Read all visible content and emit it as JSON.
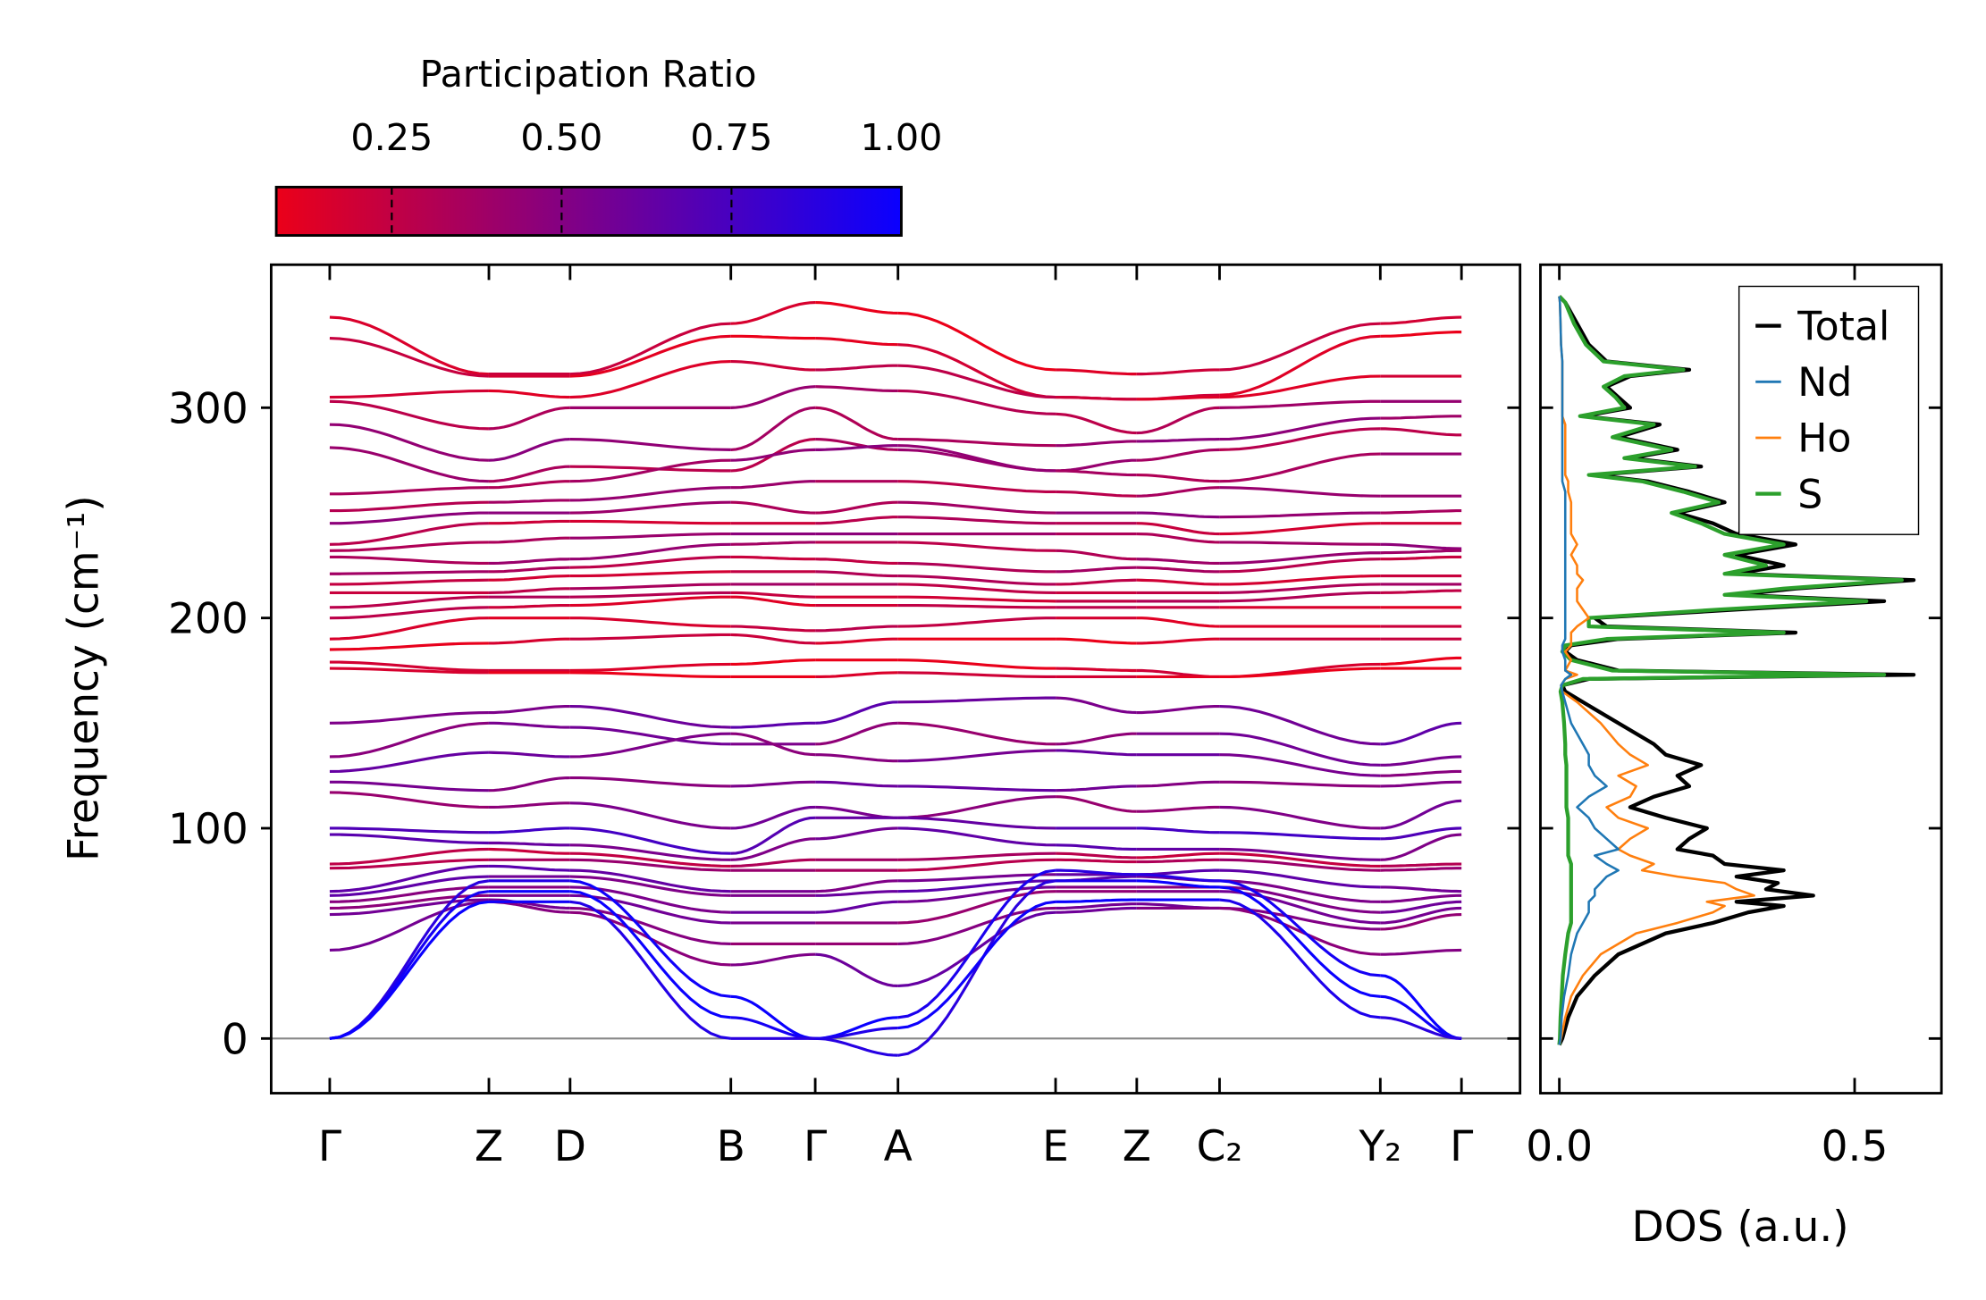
{
  "chart_data": [
    {
      "type": "line",
      "name": "phonon-band-structure",
      "ylabel": "Frequency (cm⁻¹)",
      "xlabel": "",
      "ylim": [
        -26,
        368
      ],
      "yticks": [
        "0",
        "100",
        "200",
        "300"
      ],
      "ytick_values": [
        0,
        100,
        200,
        300
      ],
      "kpoints": [
        "Γ",
        "Z",
        "D",
        "B",
        "Γ",
        "A",
        "E",
        "Z",
        "C₂",
        "Y₂",
        "Γ"
      ],
      "kpoint_positions": [
        0,
        1,
        1.51,
        2.52,
        3.05,
        3.57,
        4.56,
        5.07,
        5.59,
        6.6,
        7.11
      ],
      "colorbar": {
        "title": "Participation Ratio",
        "range": [
          0.08,
          1.0
        ],
        "ticks": [
          "0.25",
          "0.50",
          "0.75",
          "1.00"
        ],
        "tick_values": [
          0.25,
          0.5,
          0.75,
          1.0
        ],
        "low_color": "#eb0019",
        "high_color": "#0a00ff"
      },
      "bands": [
        {
          "f": [
            343,
            316,
            316,
            340,
            350,
            345,
            318,
            316,
            318,
            340,
            343
          ],
          "pr": 0.15
        },
        {
          "f": [
            333,
            315,
            315,
            334,
            333,
            330,
            305,
            304,
            306,
            334,
            336
          ],
          "pr": 0.15
        },
        {
          "f": [
            305,
            308,
            305,
            322,
            318,
            320,
            305,
            304,
            305,
            315,
            315
          ],
          "pr": 0.2
        },
        {
          "f": [
            303,
            290,
            300,
            300,
            310,
            308,
            297,
            288,
            300,
            303,
            303
          ],
          "pr": 0.35
        },
        {
          "f": [
            292,
            275,
            285,
            280,
            300,
            285,
            282,
            284,
            285,
            295,
            296
          ],
          "pr": 0.4
        },
        {
          "f": [
            281,
            265,
            272,
            270,
            285,
            280,
            270,
            275,
            280,
            290,
            287
          ],
          "pr": 0.35
        },
        {
          "f": [
            259,
            262,
            265,
            275,
            280,
            282,
            270,
            268,
            265,
            278,
            278
          ],
          "pr": 0.4
        },
        {
          "f": [
            251,
            255,
            256,
            262,
            265,
            265,
            260,
            258,
            262,
            258,
            258
          ],
          "pr": 0.35
        },
        {
          "f": [
            245,
            250,
            250,
            255,
            250,
            255,
            250,
            250,
            248,
            250,
            251
          ],
          "pr": 0.4
        },
        {
          "f": [
            235,
            245,
            246,
            245,
            245,
            248,
            245,
            245,
            240,
            245,
            245
          ],
          "pr": 0.25
        },
        {
          "f": [
            232,
            236,
            238,
            240,
            240,
            240,
            240,
            240,
            236,
            235,
            233
          ],
          "pr": 0.4
        },
        {
          "f": [
            229,
            226,
            228,
            235,
            236,
            236,
            232,
            228,
            226,
            231,
            232
          ],
          "pr": 0.35
        },
        {
          "f": [
            221,
            222,
            224,
            229,
            228,
            226,
            222,
            224,
            222,
            228,
            229
          ],
          "pr": 0.3
        },
        {
          "f": [
            216,
            218,
            220,
            222,
            222,
            220,
            216,
            218,
            216,
            220,
            220
          ],
          "pr": 0.25
        },
        {
          "f": [
            212,
            212,
            214,
            216,
            216,
            216,
            212,
            212,
            212,
            216,
            216
          ],
          "pr": 0.3
        },
        {
          "f": [
            205,
            210,
            210,
            212,
            210,
            210,
            208,
            208,
            208,
            212,
            213
          ],
          "pr": 0.25
        },
        {
          "f": [
            200,
            205,
            206,
            210,
            206,
            206,
            205,
            205,
            205,
            205,
            205
          ],
          "pr": 0.2
        },
        {
          "f": [
            190,
            200,
            200,
            196,
            194,
            196,
            200,
            200,
            196,
            196,
            196
          ],
          "pr": 0.2
        },
        {
          "f": [
            185,
            188,
            190,
            192,
            188,
            190,
            190,
            188,
            190,
            190,
            190
          ],
          "pr": 0.15
        },
        {
          "f": [
            179,
            175,
            175,
            178,
            180,
            180,
            176,
            175,
            172,
            178,
            181
          ],
          "pr": 0.12
        },
        {
          "f": [
            176,
            174,
            174,
            172,
            172,
            174,
            172,
            172,
            172,
            176,
            176
          ],
          "pr": 0.12
        },
        {
          "f": [
            150,
            155,
            158,
            148,
            150,
            160,
            162,
            155,
            158,
            140,
            150
          ],
          "pr": 0.6
        },
        {
          "f": [
            134,
            150,
            148,
            140,
            140,
            150,
            140,
            145,
            145,
            130,
            134
          ],
          "pr": 0.5
        },
        {
          "f": [
            127,
            136,
            134,
            145,
            135,
            132,
            137,
            135,
            135,
            125,
            127
          ],
          "pr": 0.55
        },
        {
          "f": [
            122,
            118,
            124,
            120,
            122,
            120,
            118,
            120,
            122,
            120,
            122
          ],
          "pr": 0.55
        },
        {
          "f": [
            117,
            110,
            112,
            100,
            110,
            105,
            115,
            108,
            110,
            100,
            113
          ],
          "pr": 0.5
        },
        {
          "f": [
            100,
            98,
            100,
            88,
            105,
            105,
            100,
            100,
            98,
            95,
            100
          ],
          "pr": 0.7
        },
        {
          "f": [
            97,
            93,
            92,
            85,
            95,
            100,
            92,
            90,
            90,
            85,
            97
          ],
          "pr": 0.6
        },
        {
          "f": [
            83,
            90,
            88,
            82,
            85,
            85,
            88,
            86,
            88,
            82,
            83
          ],
          "pr": 0.3
        },
        {
          "f": [
            81,
            85,
            85,
            80,
            80,
            80,
            85,
            84,
            85,
            80,
            81
          ],
          "pr": 0.35
        },
        {
          "f": [
            70,
            82,
            80,
            70,
            70,
            75,
            78,
            78,
            80,
            72,
            70
          ],
          "pr": 0.6
        },
        {
          "f": [
            68,
            77,
            77,
            68,
            68,
            70,
            75,
            77,
            75,
            65,
            68
          ],
          "pr": 0.6
        },
        {
          "f": [
            65,
            72,
            72,
            60,
            60,
            65,
            72,
            72,
            72,
            60,
            65
          ],
          "pr": 0.55
        },
        {
          "f": [
            62,
            68,
            68,
            55,
            55,
            55,
            70,
            70,
            70,
            55,
            62
          ],
          "pr": 0.5
        },
        {
          "f": [
            59,
            66,
            62,
            45,
            45,
            45,
            62,
            64,
            62,
            52,
            59
          ],
          "pr": 0.5
        },
        {
          "f": [
            42,
            65,
            60,
            35,
            40,
            25,
            60,
            62,
            62,
            40,
            42
          ],
          "pr": 0.55
        },
        {
          "f": [
            0,
            75,
            75,
            20,
            0,
            10,
            80,
            78,
            75,
            30,
            0
          ],
          "pr": 0.95
        },
        {
          "f": [
            0,
            70,
            70,
            10,
            0,
            -8,
            75,
            75,
            72,
            20,
            0
          ],
          "pr": 0.95
        },
        {
          "f": [
            0,
            65,
            65,
            0,
            0,
            5,
            65,
            66,
            66,
            10,
            0
          ],
          "pr": 0.95
        }
      ]
    },
    {
      "type": "line",
      "name": "density-of-states",
      "xlabel": "DOS (a.u.)",
      "xlim": [
        -0.032,
        0.647
      ],
      "xticks": [
        "0.0",
        "0.5"
      ],
      "xtick_values": [
        0.0,
        0.5
      ],
      "ylim": [
        -26,
        368
      ],
      "legend_position": "top-right",
      "series": [
        {
          "name": "Total",
          "color": "#000000"
        },
        {
          "name": "Nd",
          "color": "#1f77b4"
        },
        {
          "name": "Ho",
          "color": "#ff7f0e"
        },
        {
          "name": "S",
          "color": "#2ca02c"
        }
      ],
      "columns": [
        "frequency",
        "Total",
        "Nd",
        "Ho",
        "S"
      ],
      "rows": [
        [
          -3,
          0,
          0,
          0,
          0
        ],
        [
          0,
          0.005,
          0.002,
          0.003,
          0.001
        ],
        [
          10,
          0.015,
          0.004,
          0.01,
          0.002
        ],
        [
          20,
          0.03,
          0.008,
          0.02,
          0.004
        ],
        [
          30,
          0.06,
          0.015,
          0.04,
          0.006
        ],
        [
          40,
          0.1,
          0.02,
          0.07,
          0.01
        ],
        [
          50,
          0.18,
          0.03,
          0.13,
          0.015
        ],
        [
          55,
          0.26,
          0.04,
          0.2,
          0.02
        ],
        [
          60,
          0.32,
          0.05,
          0.26,
          0.02
        ],
        [
          63,
          0.38,
          0.05,
          0.28,
          0.02
        ],
        [
          65,
          0.3,
          0.05,
          0.25,
          0.02
        ],
        [
          68,
          0.43,
          0.06,
          0.33,
          0.02
        ],
        [
          71,
          0.35,
          0.06,
          0.3,
          0.02
        ],
        [
          74,
          0.37,
          0.07,
          0.28,
          0.02
        ],
        [
          77,
          0.3,
          0.08,
          0.2,
          0.02
        ],
        [
          80,
          0.38,
          0.1,
          0.14,
          0.02
        ],
        [
          83,
          0.28,
          0.08,
          0.16,
          0.02
        ],
        [
          87,
          0.26,
          0.06,
          0.12,
          0.015
        ],
        [
          90,
          0.2,
          0.1,
          0.1,
          0.015
        ],
        [
          95,
          0.22,
          0.08,
          0.12,
          0.015
        ],
        [
          100,
          0.25,
          0.06,
          0.15,
          0.015
        ],
        [
          105,
          0.18,
          0.05,
          0.1,
          0.015
        ],
        [
          110,
          0.12,
          0.03,
          0.08,
          0.012
        ],
        [
          115,
          0.16,
          0.05,
          0.12,
          0.012
        ],
        [
          120,
          0.22,
          0.08,
          0.13,
          0.012
        ],
        [
          125,
          0.2,
          0.06,
          0.1,
          0.012
        ],
        [
          130,
          0.24,
          0.05,
          0.15,
          0.012
        ],
        [
          135,
          0.18,
          0.05,
          0.12,
          0.01
        ],
        [
          140,
          0.16,
          0.04,
          0.1,
          0.01
        ],
        [
          150,
          0.1,
          0.02,
          0.07,
          0.008
        ],
        [
          160,
          0.04,
          0.01,
          0.03,
          0.005
        ],
        [
          165,
          0.01,
          0.005,
          0.005,
          0.002
        ],
        [
          168,
          0.005,
          0.003,
          0.003,
          0.005
        ],
        [
          171,
          0.05,
          0.01,
          0.01,
          0.04
        ],
        [
          173,
          0.6,
          0.02,
          0.03,
          0.55
        ],
        [
          175,
          0.1,
          0.01,
          0.01,
          0.09
        ],
        [
          180,
          0.03,
          0.01,
          0.02,
          0.02
        ],
        [
          184,
          0.01,
          0.005,
          0.01,
          0.005
        ],
        [
          187,
          0.02,
          0.005,
          0.02,
          0.01
        ],
        [
          190,
          0.1,
          0.01,
          0.02,
          0.08
        ],
        [
          193,
          0.4,
          0.01,
          0.02,
          0.38
        ],
        [
          196,
          0.08,
          0.01,
          0.03,
          0.05
        ],
        [
          200,
          0.06,
          0.01,
          0.05,
          0.05
        ],
        [
          204,
          0.3,
          0.01,
          0.04,
          0.27
        ],
        [
          208,
          0.55,
          0.01,
          0.03,
          0.52
        ],
        [
          211,
          0.3,
          0.01,
          0.03,
          0.28
        ],
        [
          214,
          0.4,
          0.01,
          0.03,
          0.38
        ],
        [
          218,
          0.6,
          0.01,
          0.04,
          0.58
        ],
        [
          221,
          0.3,
          0.01,
          0.03,
          0.28
        ],
        [
          225,
          0.38,
          0.01,
          0.03,
          0.35
        ],
        [
          230,
          0.3,
          0.01,
          0.02,
          0.28
        ],
        [
          235,
          0.4,
          0.01,
          0.03,
          0.38
        ],
        [
          240,
          0.3,
          0.01,
          0.02,
          0.28
        ],
        [
          245,
          0.26,
          0.01,
          0.02,
          0.24
        ],
        [
          250,
          0.2,
          0.01,
          0.02,
          0.19
        ],
        [
          255,
          0.28,
          0.01,
          0.02,
          0.27
        ],
        [
          260,
          0.22,
          0.01,
          0.015,
          0.21
        ],
        [
          265,
          0.15,
          0.005,
          0.015,
          0.14
        ],
        [
          268,
          0.06,
          0.005,
          0.01,
          0.05
        ],
        [
          272,
          0.24,
          0.005,
          0.01,
          0.23
        ],
        [
          276,
          0.12,
          0.005,
          0.01,
          0.11
        ],
        [
          280,
          0.2,
          0.005,
          0.01,
          0.19
        ],
        [
          286,
          0.1,
          0.005,
          0.01,
          0.09
        ],
        [
          292,
          0.17,
          0.005,
          0.01,
          0.16
        ],
        [
          296,
          0.04,
          0.005,
          0.005,
          0.035
        ],
        [
          300,
          0.12,
          0.005,
          0.005,
          0.11
        ],
        [
          305,
          0.1,
          0.005,
          0.005,
          0.095
        ],
        [
          310,
          0.08,
          0.005,
          0.005,
          0.075
        ],
        [
          315,
          0.12,
          0.005,
          0.005,
          0.11
        ],
        [
          318,
          0.22,
          0.005,
          0.005,
          0.21
        ],
        [
          322,
          0.08,
          0.005,
          0.005,
          0.075
        ],
        [
          330,
          0.05,
          0.003,
          0.003,
          0.045
        ],
        [
          340,
          0.03,
          0.002,
          0.002,
          0.025
        ],
        [
          350,
          0.01,
          0.001,
          0.001,
          0.01
        ],
        [
          353,
          0,
          0,
          0,
          0
        ]
      ]
    }
  ]
}
